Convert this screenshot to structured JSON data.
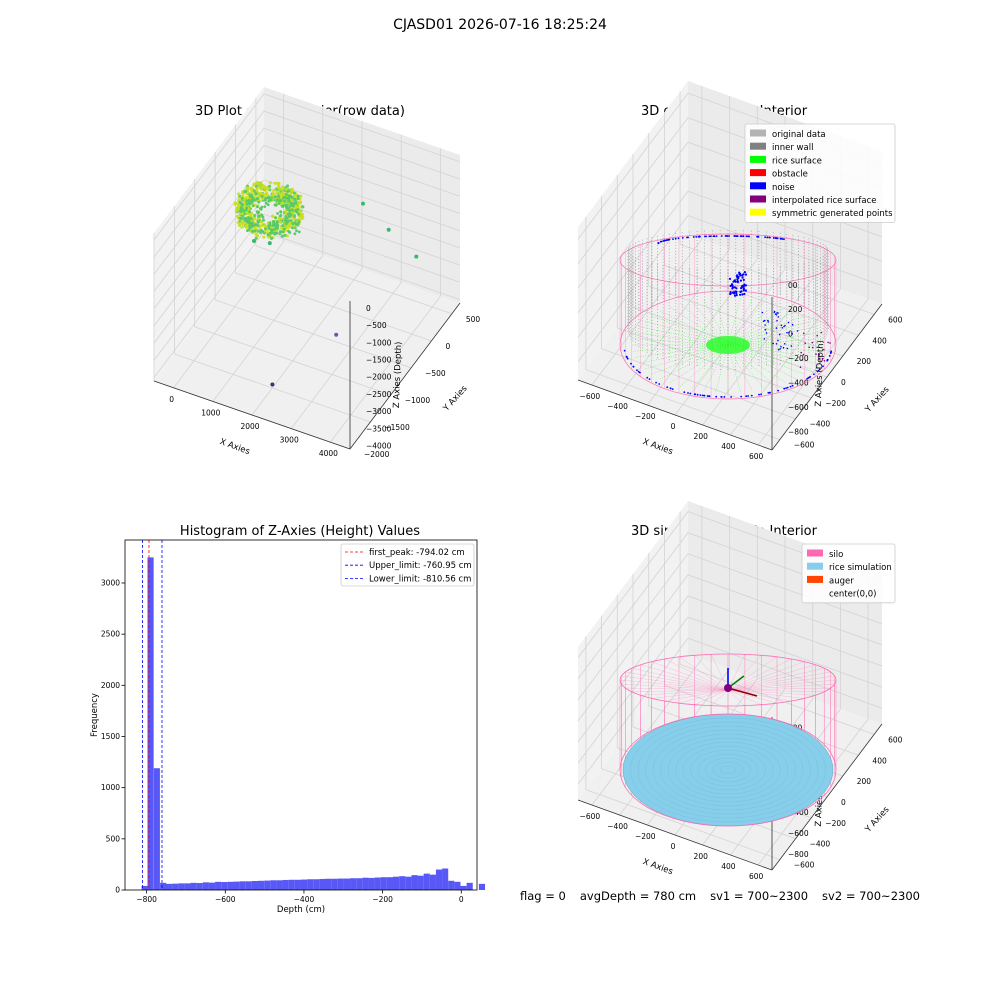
{
  "figure": {
    "suptitle": "CJASD01 2026-07-16 18:25:24",
    "status": {
      "flag": "flag = 0",
      "avg_depth": "avgDepth = 780 cm",
      "sv1": "sv1 = 700~2300",
      "sv2": "sv2 = 700~2300"
    }
  },
  "chart_data": [
    {
      "type": "scatter",
      "projection": "3d",
      "title": "3D Plot of Silo Interior(row data)",
      "xlabel": "X Axies",
      "ylabel": "Y Axies",
      "zlabel": "Z Axies (Depth)",
      "x_ticks": [
        "0",
        "1000",
        "2000",
        "3000",
        "4000"
      ],
      "y_ticks": [
        "500",
        "0",
        "−500",
        "−1000",
        "−1500",
        "−2000"
      ],
      "z_ticks": [
        "0",
        "−500",
        "−1000",
        "−1500",
        "−2000",
        "−2500",
        "−3000",
        "−3500",
        "−4000"
      ],
      "xlim": [
        -500,
        4500
      ],
      "ylim": [
        -2000,
        700
      ],
      "zlim": [
        -4100,
        200
      ],
      "colormap": "viridis",
      "colors": {
        "surface_a": "#c8e01e",
        "surface_b": "#57c968",
        "outlier_green": "#3ab86f",
        "outlier_purple": "#7e4fb0",
        "outlier_dark": "#3f2e7c"
      },
      "outliers": [
        {
          "x": 2650,
          "y": 100,
          "z": -1000
        },
        {
          "x": 700,
          "y": -700,
          "z": -1600
        },
        {
          "x": 1000,
          "y": -600,
          "z": -1700
        },
        {
          "x": 3200,
          "y": 200,
          "z": -1700
        },
        {
          "x": 3800,
          "y": 300,
          "z": -2400
        },
        {
          "x": 2900,
          "y": -800,
          "z": -3300
        },
        {
          "x": 2000,
          "y": -1500,
          "z": -4000
        }
      ]
    },
    {
      "type": "scatter",
      "projection": "3d",
      "title": "3D classify of Silo Interior",
      "xlabel": "X Axies",
      "ylabel": "Y Axies",
      "zlabel": "Z Axies (Depth)",
      "x_ticks": [
        "−600",
        "−400",
        "−200",
        "0",
        "200",
        "400",
        "600"
      ],
      "y_ticks": [
        "600",
        "400",
        "200",
        "0",
        "−200",
        "−400",
        "−600"
      ],
      "z_ticks": [
        "200",
        "0",
        "−200",
        "−400",
        "−600",
        "−800"
      ],
      "z_ticks_partial": [
        "00"
      ],
      "legend": [
        {
          "label": "original data",
          "color": "#b3b3b3"
        },
        {
          "label": "inner wall",
          "color": "#808080"
        },
        {
          "label": "rice surface",
          "color": "#00ff00"
        },
        {
          "label": "obstacle",
          "color": "#ff0000"
        },
        {
          "label": "noise",
          "color": "#0000ff"
        },
        {
          "label": "interpolated rice surface",
          "color": "#800080"
        },
        {
          "label": "symmetric generated points",
          "color": "#ffff00"
        }
      ],
      "legend_position": "top-right",
      "wire_color": "#ff69b4"
    },
    {
      "type": "bar",
      "title": "Histogram of Z-Axies (Height) Values",
      "xlabel": "Depth (cm)",
      "ylabel": "Frequency",
      "bar_color": "#4f4ff7",
      "bin_width": 15.6,
      "bins": [
        {
          "x": -805,
          "value": 40
        },
        {
          "x": -790,
          "value": 3250
        },
        {
          "x": -774,
          "value": 1190
        },
        {
          "x": -758,
          "value": 70
        }
      ],
      "tail_start": -743,
      "tail_values": [
        60,
        62,
        65,
        65,
        70,
        68,
        75,
        72,
        80,
        78,
        80,
        82,
        85,
        85,
        88,
        90,
        92,
        95,
        95,
        98,
        100,
        100,
        102,
        105,
        105,
        108,
        110,
        110,
        112,
        112,
        115,
        115,
        120,
        118,
        122,
        125,
        125,
        130,
        135,
        130,
        145,
        140,
        160,
        150,
        200,
        210,
        90,
        80,
        40,
        70,
        0,
        60
      ],
      "x_ticks": [
        -800,
        -600,
        -400,
        -200,
        0
      ],
      "x_tick_labels": [
        "−800",
        "−600",
        "−400",
        "−200",
        "0"
      ],
      "y_ticks": [
        0,
        500,
        1000,
        1500,
        2000,
        2500,
        3000
      ],
      "xlim": [
        -855,
        40
      ],
      "ylim": [
        0,
        3420
      ],
      "vlines": [
        {
          "label": "first_peak: -794.02 cm",
          "x": -794.02,
          "color": "#ff0000"
        },
        {
          "label": "Upper_limit: -760.95 cm",
          "x": -760.95,
          "color": "#0000ff"
        },
        {
          "label": "Lower_limit: -810.56 cm",
          "x": -810.56,
          "color": "#0000ff"
        }
      ],
      "legend_position": "top-right"
    },
    {
      "type": "surface",
      "projection": "3d",
      "title": "3D simulation of Silo Interior",
      "xlabel": "X Axies",
      "ylabel": "Y Axies",
      "zlabel": "Z Axies (Depth)",
      "x_ticks": [
        "−600",
        "−400",
        "−200",
        "0",
        "200",
        "400",
        "600"
      ],
      "y_ticks": [
        "600",
        "400",
        "200",
        "0",
        "−200",
        "−400",
        "−600"
      ],
      "z_ticks": [
        "400",
        "200",
        "0",
        "−200",
        "−400",
        "−600",
        "−800"
      ],
      "legend": [
        {
          "label": "silo",
          "color": "#ff69b4"
        },
        {
          "label": "rice simulation",
          "color": "#87ceeb"
        },
        {
          "label": "auger",
          "color": "#ff4500"
        },
        {
          "label": "center(0,0)",
          "color": ""
        }
      ],
      "legend_position": "top-right",
      "rice_depth": -780
    }
  ]
}
